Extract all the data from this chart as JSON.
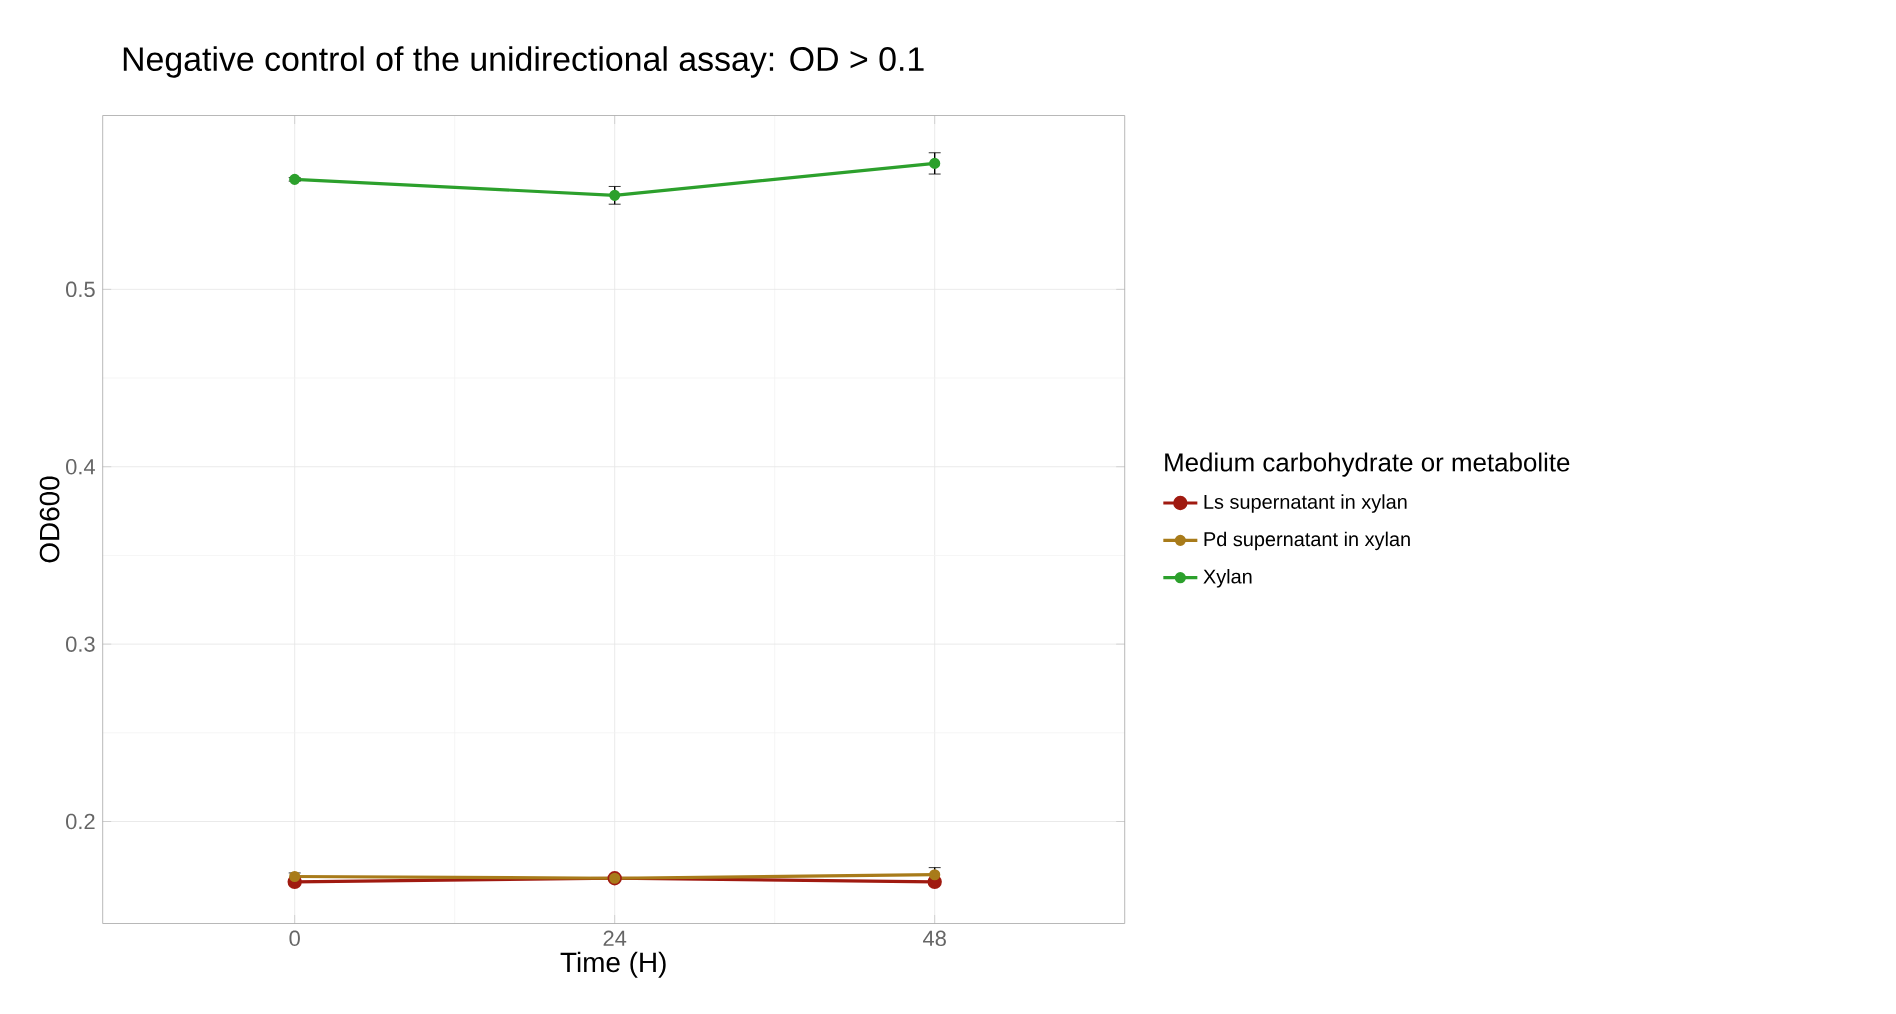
{
  "chart_data": {
    "type": "line",
    "title": "Negative control of the unidirectional assay: OD > 0.1",
    "xlabel": "Time (H)",
    "ylabel": "OD600",
    "legend_title": "Medium carbohydrate or metabolite",
    "x": [
      0,
      24,
      48
    ],
    "series": [
      {
        "name": "Ls supernatant in xylan",
        "color": "#a01a10",
        "values": [
          0.166,
          0.168,
          0.166
        ]
      },
      {
        "name": "Pd supernatant in xylan",
        "color": "#a87b1a",
        "values": [
          0.169,
          0.168,
          0.17
        ],
        "errors": [
          0.002,
          0.001,
          0.004
        ]
      },
      {
        "name": "Xylan",
        "color": "#2ca02c",
        "values": [
          0.562,
          0.553,
          0.571
        ],
        "errors": [
          0.001,
          0.005,
          0.006
        ]
      }
    ],
    "xlim": [
      -14.4,
      62.25
    ],
    "ylim": [
      0.1425,
      0.598
    ],
    "xticks": [
      0,
      24,
      48
    ],
    "yticks": [
      0.2,
      0.3,
      0.4,
      0.5
    ],
    "grid": true,
    "legend": "right",
    "marker": "circle",
    "line_style": "solid"
  }
}
